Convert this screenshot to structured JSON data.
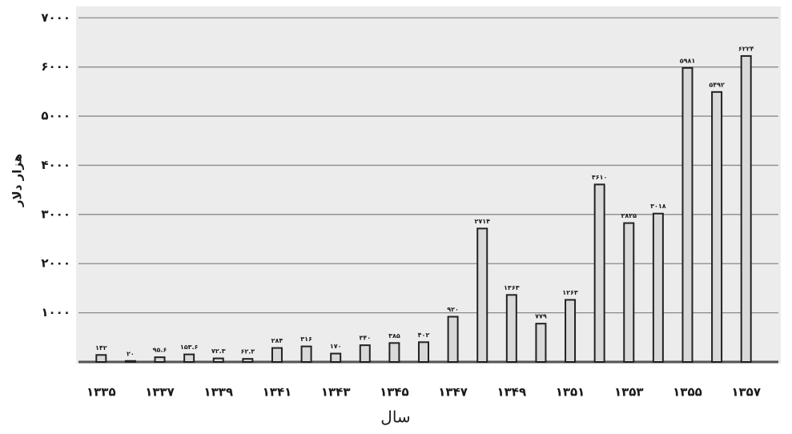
{
  "chart_data": {
    "type": "bar",
    "x_label": "سال",
    "y_label": "هزار دلار",
    "categories": [
      "۱۳۳۵",
      null,
      "۱۳۳۷",
      null,
      "۱۳۳۹",
      null,
      "۱۳۴۱",
      null,
      "۱۳۴۳",
      null,
      "۱۳۴۵",
      null,
      "۱۳۴۷",
      null,
      "۱۳۴۹",
      null,
      "۱۳۵۱",
      null,
      "۱۳۵۳",
      null,
      "۱۳۵۵",
      null,
      "۱۳۵۷"
    ],
    "values": [
      142,
      20,
      95.6,
      153.6,
      72.3,
      62.3,
      284,
      316,
      170,
      340,
      385,
      402,
      920,
      2714,
      1363,
      779,
      1263,
      3610,
      2825,
      3018,
      5981,
      5492,
      6224
    ],
    "value_labels": [
      "۱۴۲",
      "۲۰",
      "۹۵.۶",
      "۱۵۳.۶",
      "۷۲.۳",
      "۶۲.۳",
      "۲۸۴",
      "۳۱۶",
      "۱۷۰",
      "۳۴۰",
      "۳۸۵",
      "۴۰۲",
      "۹۲۰",
      "۲۷۱۴",
      "۱۳۶۳",
      "۷۷۹",
      "۱۲۶۳",
      "۳۶۱۰",
      "۲۸۲۵",
      "۳۰۱۸",
      "۵۹۸۱",
      "۵۴۹۲",
      "۶۲۲۴"
    ],
    "color": "#d9d9d9",
    "ylim": [
      0,
      7200
    ],
    "yticks": [
      {
        "value": 1000,
        "label": "۱۰۰۰"
      },
      {
        "value": 2000,
        "label": "۲۰۰۰"
      },
      {
        "value": 3000,
        "label": "۳۰۰۰"
      },
      {
        "value": 4000,
        "label": "۴۰۰۰"
      },
      {
        "value": 5000,
        "label": "۵۰۰۰"
      },
      {
        "value": 6000,
        "label": "۶۰۰۰"
      },
      {
        "value": 7000,
        "label": "۷۰۰۰"
      }
    ],
    "grid": true
  }
}
